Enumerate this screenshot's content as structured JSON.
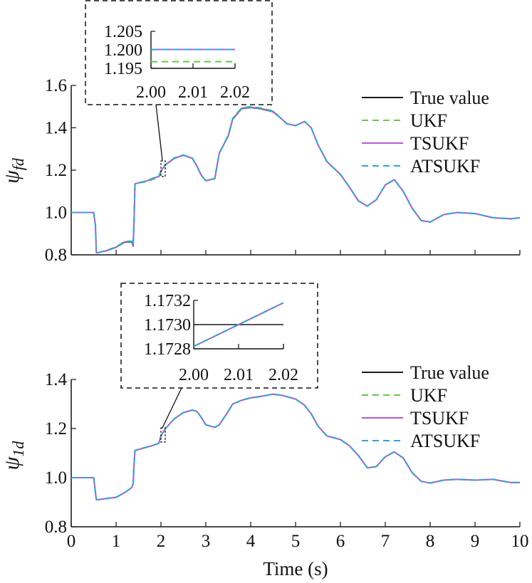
{
  "colors": {
    "true_value": "#1a1a1a",
    "ukf": "#66c84a",
    "tsukf": "#b45bd1",
    "atsukf": "#2aa8d8",
    "axis": "#111111"
  },
  "chart_data": [
    {
      "type": "line",
      "panel": "top",
      "ylabel_symbol": "ψ",
      "ylabel_subscript": "fd",
      "xlim": [
        0,
        10
      ],
      "ylim": [
        0.8,
        1.6
      ],
      "yticks": [
        "0.8",
        "1.0",
        "1.2",
        "1.4",
        "1.6"
      ],
      "grid": false,
      "legend_position": "top-right",
      "x": [
        0,
        0.5,
        0.54,
        0.56,
        0.6,
        0.8,
        1.0,
        1.2,
        1.35,
        1.38,
        1.4,
        1.42,
        1.5,
        1.7,
        1.8,
        1.95,
        2.0,
        2.1,
        2.3,
        2.5,
        2.7,
        2.8,
        2.9,
        3.0,
        3.2,
        3.3,
        3.5,
        3.6,
        3.8,
        4.0,
        4.2,
        4.5,
        4.7,
        4.8,
        5.0,
        5.2,
        5.35,
        5.5,
        5.7,
        6.0,
        6.2,
        6.4,
        6.6,
        6.8,
        7.0,
        7.2,
        7.4,
        7.6,
        7.8,
        8.0,
        8.3,
        8.6,
        9.0,
        9.4,
        9.8,
        10.0
      ],
      "series": [
        {
          "name": "True value",
          "values": [
            1.0,
            1.0,
            0.94,
            0.81,
            0.81,
            0.82,
            0.835,
            0.86,
            0.86,
            0.84,
            0.95,
            1.135,
            1.14,
            1.15,
            1.16,
            1.17,
            1.195,
            1.225,
            1.255,
            1.27,
            1.255,
            1.22,
            1.175,
            1.15,
            1.16,
            1.28,
            1.36,
            1.44,
            1.49,
            1.495,
            1.49,
            1.475,
            1.44,
            1.42,
            1.41,
            1.43,
            1.4,
            1.32,
            1.24,
            1.18,
            1.12,
            1.055,
            1.03,
            1.06,
            1.13,
            1.155,
            1.1,
            1.02,
            0.962,
            0.955,
            0.99,
            1.0,
            0.995,
            0.975,
            0.97,
            0.975
          ]
        },
        {
          "name": "UKF",
          "values": [
            1.0,
            1.0,
            0.94,
            0.81,
            0.81,
            0.822,
            0.838,
            0.865,
            0.865,
            0.845,
            0.95,
            1.135,
            1.14,
            1.145,
            1.155,
            1.165,
            1.192,
            1.225,
            1.258,
            1.272,
            1.255,
            1.22,
            1.175,
            1.15,
            1.16,
            1.28,
            1.365,
            1.445,
            1.495,
            1.5,
            1.495,
            1.48,
            1.44,
            1.42,
            1.41,
            1.43,
            1.4,
            1.32,
            1.24,
            1.18,
            1.12,
            1.055,
            1.03,
            1.06,
            1.13,
            1.155,
            1.1,
            1.02,
            0.962,
            0.955,
            0.99,
            1.0,
            0.995,
            0.975,
            0.97,
            0.975
          ]
        },
        {
          "name": "TSUKF",
          "values": [
            1.0,
            1.0,
            0.94,
            0.81,
            0.81,
            0.821,
            0.836,
            0.862,
            0.862,
            0.842,
            0.95,
            1.135,
            1.14,
            1.15,
            1.16,
            1.17,
            1.196,
            1.226,
            1.256,
            1.271,
            1.256,
            1.22,
            1.175,
            1.15,
            1.16,
            1.28,
            1.362,
            1.442,
            1.492,
            1.497,
            1.492,
            1.477,
            1.44,
            1.42,
            1.41,
            1.43,
            1.4,
            1.32,
            1.24,
            1.18,
            1.12,
            1.055,
            1.03,
            1.06,
            1.13,
            1.155,
            1.1,
            1.02,
            0.962,
            0.955,
            0.99,
            1.0,
            0.995,
            0.975,
            0.97,
            0.975
          ]
        },
        {
          "name": "ATSUKF",
          "values": [
            1.0,
            1.0,
            0.94,
            0.81,
            0.81,
            0.821,
            0.836,
            0.862,
            0.862,
            0.842,
            0.95,
            1.135,
            1.14,
            1.15,
            1.16,
            1.17,
            1.196,
            1.226,
            1.256,
            1.271,
            1.256,
            1.22,
            1.175,
            1.15,
            1.16,
            1.28,
            1.362,
            1.442,
            1.492,
            1.497,
            1.492,
            1.477,
            1.44,
            1.42,
            1.41,
            1.43,
            1.4,
            1.32,
            1.24,
            1.18,
            1.12,
            1.055,
            1.03,
            1.06,
            1.13,
            1.155,
            1.1,
            1.02,
            0.962,
            0.955,
            0.99,
            1.0,
            0.995,
            0.975,
            0.97,
            0.975
          ]
        }
      ],
      "inset": {
        "xlim": [
          2.0,
          2.02
        ],
        "ylim": [
          1.195,
          1.205
        ],
        "xticks": [
          "2.00",
          "2.01",
          "2.02"
        ],
        "yticks": [
          "1.195",
          "1.200",
          "1.205"
        ],
        "x": [
          2.0,
          2.02
        ],
        "series": [
          {
            "name": "True value",
            "values": [
              1.2001,
              1.2001
            ]
          },
          {
            "name": "UKF",
            "values": [
              1.1968,
              1.1968
            ]
          },
          {
            "name": "TSUKF",
            "values": [
              1.2001,
              1.2001
            ]
          },
          {
            "name": "ATSUKF",
            "values": [
              1.2001,
              1.2001
            ]
          }
        ]
      }
    },
    {
      "type": "line",
      "panel": "bottom",
      "ylabel_symbol": "ψ",
      "ylabel_subscript": "1d",
      "xlabel": "Time (s)",
      "xlim": [
        0,
        10
      ],
      "ylim": [
        0.8,
        1.4
      ],
      "xticks": [
        "0",
        "1",
        "2",
        "3",
        "4",
        "5",
        "6",
        "7",
        "8",
        "9",
        "10"
      ],
      "yticks": [
        "0.8",
        "1.0",
        "1.2",
        "1.4"
      ],
      "grid": false,
      "legend_position": "top-right",
      "x": [
        0,
        0.5,
        0.54,
        0.56,
        0.6,
        0.8,
        1.0,
        1.2,
        1.35,
        1.38,
        1.4,
        1.42,
        1.5,
        1.7,
        1.8,
        1.95,
        2.0,
        2.1,
        2.3,
        2.5,
        2.7,
        2.8,
        2.9,
        3.0,
        3.2,
        3.3,
        3.5,
        3.6,
        3.8,
        4.0,
        4.2,
        4.5,
        4.7,
        4.8,
        5.0,
        5.2,
        5.35,
        5.5,
        5.7,
        6.0,
        6.2,
        6.4,
        6.6,
        6.8,
        7.0,
        7.2,
        7.4,
        7.6,
        7.8,
        8.0,
        8.3,
        8.6,
        9.0,
        9.4,
        9.8,
        10.0
      ],
      "series": [
        {
          "name": "True value",
          "values": [
            1.0,
            1.0,
            0.94,
            0.91,
            0.91,
            0.915,
            0.92,
            0.94,
            0.96,
            0.975,
            1.05,
            1.11,
            1.115,
            1.125,
            1.13,
            1.14,
            1.17,
            1.2,
            1.24,
            1.265,
            1.275,
            1.27,
            1.245,
            1.215,
            1.205,
            1.215,
            1.27,
            1.3,
            1.315,
            1.325,
            1.33,
            1.34,
            1.335,
            1.33,
            1.32,
            1.295,
            1.26,
            1.21,
            1.17,
            1.155,
            1.13,
            1.09,
            1.04,
            1.045,
            1.085,
            1.105,
            1.08,
            1.02,
            0.985,
            0.978,
            0.99,
            0.993,
            0.99,
            0.993,
            0.98,
            0.98
          ]
        },
        {
          "name": "UKF",
          "values": [
            1.0,
            1.0,
            0.94,
            0.91,
            0.91,
            0.915,
            0.92,
            0.94,
            0.96,
            0.975,
            1.05,
            1.11,
            1.115,
            1.125,
            1.13,
            1.14,
            1.17,
            1.2,
            1.24,
            1.265,
            1.275,
            1.27,
            1.245,
            1.215,
            1.205,
            1.215,
            1.27,
            1.3,
            1.315,
            1.325,
            1.33,
            1.34,
            1.335,
            1.33,
            1.32,
            1.295,
            1.26,
            1.21,
            1.17,
            1.155,
            1.13,
            1.09,
            1.04,
            1.045,
            1.085,
            1.105,
            1.08,
            1.02,
            0.985,
            0.978,
            0.99,
            0.993,
            0.99,
            0.993,
            0.98,
            0.98
          ]
        },
        {
          "name": "TSUKF",
          "values": [
            1.0,
            1.0,
            0.94,
            0.91,
            0.91,
            0.915,
            0.92,
            0.94,
            0.96,
            0.975,
            1.05,
            1.11,
            1.115,
            1.125,
            1.13,
            1.14,
            1.17,
            1.2,
            1.24,
            1.265,
            1.275,
            1.27,
            1.245,
            1.215,
            1.205,
            1.215,
            1.27,
            1.3,
            1.315,
            1.325,
            1.33,
            1.34,
            1.335,
            1.33,
            1.32,
            1.295,
            1.26,
            1.21,
            1.17,
            1.155,
            1.13,
            1.09,
            1.04,
            1.045,
            1.085,
            1.105,
            1.08,
            1.02,
            0.985,
            0.978,
            0.99,
            0.993,
            0.99,
            0.993,
            0.98,
            0.98
          ]
        },
        {
          "name": "ATSUKF",
          "values": [
            1.0,
            1.0,
            0.94,
            0.91,
            0.91,
            0.915,
            0.92,
            0.94,
            0.96,
            0.975,
            1.05,
            1.11,
            1.115,
            1.125,
            1.13,
            1.14,
            1.17,
            1.2,
            1.24,
            1.265,
            1.275,
            1.27,
            1.245,
            1.215,
            1.205,
            1.215,
            1.27,
            1.3,
            1.315,
            1.325,
            1.33,
            1.34,
            1.335,
            1.33,
            1.32,
            1.295,
            1.26,
            1.21,
            1.17,
            1.155,
            1.13,
            1.09,
            1.04,
            1.045,
            1.085,
            1.105,
            1.08,
            1.02,
            0.985,
            0.978,
            0.99,
            0.993,
            0.99,
            0.993,
            0.98,
            0.98
          ]
        }
      ],
      "inset": {
        "xlim": [
          2.0,
          2.02
        ],
        "ylim": [
          1.1728,
          1.1732
        ],
        "xticks": [
          "2.00",
          "2.01",
          "2.02"
        ],
        "yticks": [
          "1.1728",
          "1.1730",
          "1.1732"
        ],
        "x": [
          2.0,
          2.02
        ],
        "series": [
          {
            "name": "True value",
            "values": [
              1.173,
              1.173
            ]
          },
          {
            "name": "UKF",
            "values": [
              1.17282,
              1.17318
            ]
          },
          {
            "name": "TSUKF",
            "values": [
              1.17282,
              1.17318
            ]
          },
          {
            "name": "ATSUKF",
            "values": [
              1.17282,
              1.17318
            ]
          }
        ]
      }
    }
  ]
}
